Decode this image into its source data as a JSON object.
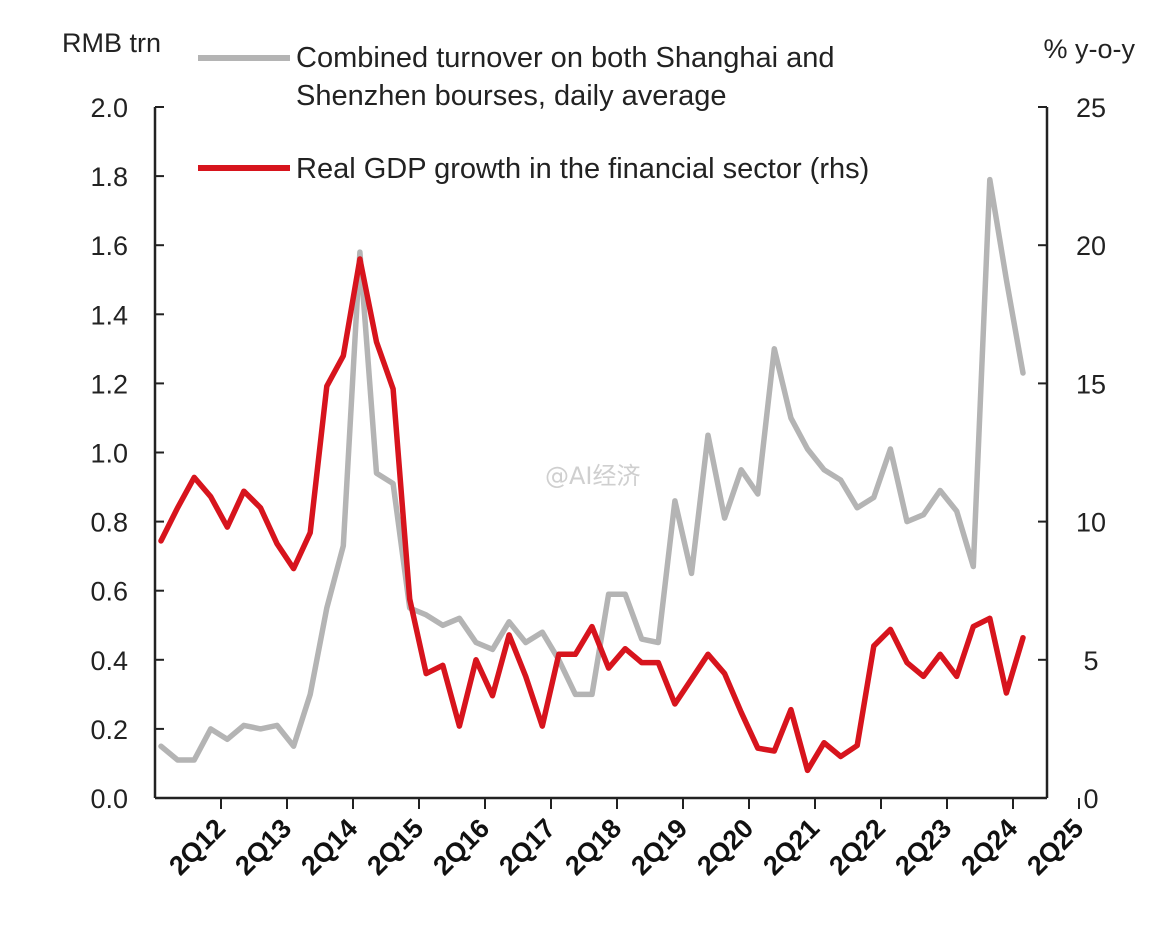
{
  "watermark": "@AI经济",
  "chart_data": {
    "type": "line",
    "left_axis_unit": "RMB trn",
    "right_axis_unit": "% y-o-y",
    "left_ylim": [
      0,
      2.0
    ],
    "left_ticks": [
      "0.0",
      "0.2",
      "0.4",
      "0.6",
      "0.8",
      "1.0",
      "1.2",
      "1.4",
      "1.6",
      "1.8",
      "2.0"
    ],
    "right_ylim": [
      0,
      25
    ],
    "right_ticks": [
      "0",
      "5",
      "10",
      "15",
      "20",
      "25"
    ],
    "x_tick_labels": [
      "2Q12",
      "2Q13",
      "2Q14",
      "2Q15",
      "2Q16",
      "2Q17",
      "2Q18",
      "2Q19",
      "2Q20",
      "2Q21",
      "2Q22",
      "2Q23",
      "2Q24",
      "2Q25"
    ],
    "grid": false,
    "legend_position": "top",
    "series": [
      {
        "name": "Combined turnover on both Shanghai and Shenzhen bourses, daily average",
        "axis": "left",
        "color": "#b4b4b4",
        "values": [
          0.15,
          0.11,
          0.11,
          0.2,
          0.17,
          0.21,
          0.2,
          0.21,
          0.15,
          0.3,
          0.55,
          0.73,
          1.58,
          0.94,
          0.91,
          0.55,
          0.53,
          0.5,
          0.52,
          0.45,
          0.43,
          0.51,
          0.45,
          0.48,
          0.4,
          0.3,
          0.3,
          0.59,
          0.59,
          0.46,
          0.45,
          0.86,
          0.65,
          1.05,
          0.81,
          0.95,
          0.88,
          1.3,
          1.1,
          1.01,
          0.95,
          0.92,
          0.84,
          0.87,
          1.01,
          0.8,
          0.82,
          0.89,
          0.83,
          0.67,
          1.79,
          1.5,
          1.23
        ]
      },
      {
        "name": "Real GDP growth in the financial sector (rhs)",
        "axis": "right",
        "color": "#d7141d",
        "values": [
          9.3,
          10.5,
          11.6,
          10.9,
          9.8,
          11.1,
          10.5,
          9.2,
          8.3,
          9.6,
          14.9,
          16.0,
          19.5,
          16.5,
          14.8,
          7.2,
          4.5,
          4.8,
          2.6,
          5.0,
          3.7,
          5.9,
          4.4,
          2.6,
          5.2,
          5.2,
          6.2,
          4.7,
          5.4,
          4.9,
          4.9,
          3.4,
          4.3,
          5.2,
          4.5,
          3.1,
          1.8,
          1.7,
          3.2,
          1.0,
          2.0,
          1.5,
          1.9,
          5.5,
          6.1,
          4.9,
          4.4,
          5.2,
          4.4,
          6.2,
          6.5,
          3.8,
          5.8
        ]
      }
    ]
  }
}
